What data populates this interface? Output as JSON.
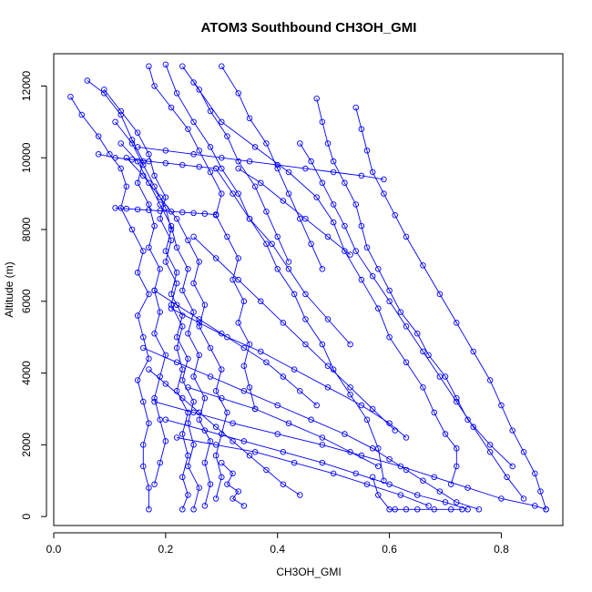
{
  "chart_data": {
    "type": "line",
    "title": "ATOM3 Southbound CH3OH_GMI",
    "xlabel": "CH3OH_GMI",
    "ylabel": "Altitude (m)",
    "xlim": [
      0,
      0.91
    ],
    "ylim": [
      -250,
      12900
    ],
    "x_ticks": [
      0,
      0.2,
      0.4,
      0.6,
      0.8
    ],
    "x_tick_labels": [
      "0.0",
      "0.2",
      "0.4",
      "0.6",
      "0.8"
    ],
    "y_ticks": [
      0,
      2000,
      4000,
      6000,
      8000,
      10000,
      12000
    ],
    "y_tick_labels": [
      "0",
      "2000",
      "4000",
      "6000",
      "8000",
      "10000",
      "12000"
    ],
    "marker": "open-circle",
    "color": "#0000ff",
    "grid": false,
    "legend": "none",
    "series": [
      {
        "x": [
          0.03,
          0.05,
          0.08,
          0.1,
          0.12,
          0.13,
          0.12,
          0.14,
          0.16,
          0.15,
          0.17,
          0.15,
          0.16,
          0.17,
          0.15,
          0.16,
          0.17,
          0.16,
          0.16,
          0.17,
          0.17
        ],
        "y": [
          11700,
          11200,
          10600,
          10100,
          9700,
          9200,
          8600,
          8000,
          7400,
          6800,
          6200,
          5600,
          5000,
          4400,
          3800,
          3200,
          2600,
          2000,
          1400,
          800,
          200
        ]
      },
      {
        "x": [
          0.06,
          0.09,
          0.12,
          0.14,
          0.16,
          0.15,
          0.17,
          0.18,
          0.17,
          0.19,
          0.18,
          0.19,
          0.18,
          0.2,
          0.19,
          0.18,
          0.19,
          0.2,
          0.19,
          0.18
        ],
        "y": [
          12150,
          11800,
          11200,
          10500,
          9900,
          9300,
          8700,
          8100,
          7500,
          6900,
          6300,
          5700,
          5100,
          4500,
          3900,
          3300,
          2700,
          2100,
          1500,
          900
        ]
      },
      {
        "x": [
          0.09,
          0.12,
          0.15,
          0.17,
          0.18,
          0.2,
          0.19,
          0.21,
          0.2,
          0.22,
          0.21,
          0.23,
          0.22,
          0.23,
          0.22,
          0.24,
          0.23,
          0.24,
          0.23,
          0.24,
          0.23
        ],
        "y": [
          11900,
          11300,
          10700,
          10100,
          9500,
          8900,
          8300,
          7700,
          7100,
          6500,
          5900,
          5300,
          4700,
          4100,
          3500,
          2900,
          2300,
          1700,
          1100,
          600,
          200
        ]
      },
      {
        "x": [
          0.11,
          0.14,
          0.16,
          0.18,
          0.2,
          0.21,
          0.2,
          0.22,
          0.21,
          0.23,
          0.22,
          0.24,
          0.23,
          0.25,
          0.24,
          0.25,
          0.24,
          0.26,
          0.25
        ],
        "y": [
          11000,
          10400,
          9800,
          9200,
          8600,
          8000,
          7400,
          6800,
          6200,
          5600,
          5000,
          4400,
          3800,
          3200,
          2600,
          2000,
          1400,
          800,
          200
        ]
      },
      {
        "x": [
          0.12,
          0.15,
          0.17,
          0.19,
          0.21,
          0.22,
          0.24,
          0.23,
          0.25,
          0.24,
          0.26,
          0.25,
          0.27,
          0.26,
          0.28,
          0.27,
          0.28,
          0.27
        ],
        "y": [
          10400,
          9900,
          9300,
          8700,
          8100,
          7500,
          6900,
          6300,
          5700,
          5100,
          4500,
          3900,
          3300,
          2700,
          2100,
          1500,
          900,
          300
        ]
      },
      {
        "x": [
          0.13,
          0.16,
          0.19,
          0.22,
          0.24,
          0.26,
          0.25,
          0.27,
          0.26,
          0.28,
          0.3,
          0.29,
          0.31,
          0.3,
          0.29,
          0.3,
          0.29
        ],
        "y": [
          10000,
          9500,
          8900,
          8300,
          7700,
          7100,
          6500,
          5900,
          5300,
          4700,
          4100,
          3500,
          2900,
          2300,
          1700,
          1100,
          500
        ]
      },
      {
        "x": [
          0.17,
          0.18,
          0.21,
          0.24,
          0.26,
          0.28,
          0.3,
          0.29,
          0.31,
          0.33,
          0.32,
          0.34,
          0.33,
          0.35,
          0.34,
          0.35,
          0.36
        ],
        "y": [
          12550,
          12000,
          11400,
          10800,
          10200,
          9600,
          9000,
          8400,
          7800,
          7200,
          6600,
          6000,
          5400,
          4800,
          4200,
          3600,
          3000
        ]
      },
      {
        "x": [
          0.2,
          0.22,
          0.25,
          0.28,
          0.3,
          0.33,
          0.35,
          0.38,
          0.4,
          0.43,
          0.45,
          0.48,
          0.5,
          0.53,
          0.56,
          0.58,
          0.59
        ],
        "y": [
          12600,
          11800,
          11000,
          10300,
          9700,
          9000,
          8300,
          7600,
          6900,
          6200,
          5500,
          4800,
          4100,
          3400,
          2700,
          1900,
          1000
        ]
      },
      {
        "x": [
          0.25,
          0.3,
          0.36,
          0.42,
          0.47,
          0.5,
          0.52,
          0.55,
          0.58,
          0.6,
          0.63,
          0.66,
          0.68,
          0.7,
          0.72,
          0.72,
          0.71
        ],
        "y": [
          12100,
          11000,
          10300,
          9600,
          8900,
          8200,
          7400,
          6600,
          5800,
          5000,
          4300,
          3600,
          2900,
          2300,
          1900,
          1400,
          900
        ]
      },
      {
        "x": [
          0.47,
          0.48,
          0.49,
          0.5,
          0.52,
          0.54,
          0.55,
          0.56,
          0.58,
          0.6,
          0.62,
          0.65,
          0.67,
          0.7,
          0.72,
          0.74,
          0.78,
          0.82
        ],
        "y": [
          11650,
          11000,
          10400,
          9900,
          9300,
          8700,
          8100,
          7500,
          6900,
          6300,
          5700,
          5100,
          4500,
          3900,
          3300,
          2700,
          2000,
          1400
        ]
      },
      {
        "x": [
          0.54,
          0.55,
          0.56,
          0.57,
          0.59,
          0.61,
          0.63,
          0.66,
          0.69,
          0.72,
          0.75,
          0.78,
          0.8,
          0.82,
          0.84,
          0.86,
          0.87,
          0.88
        ],
        "y": [
          11400,
          10800,
          10200,
          9600,
          9000,
          8400,
          7800,
          7000,
          6200,
          5400,
          4600,
          3800,
          3100,
          2400,
          1800,
          1200,
          700,
          200
        ]
      },
      {
        "x": [
          0.44,
          0.46,
          0.48,
          0.5,
          0.52,
          0.54,
          0.57,
          0.6,
          0.63,
          0.66,
          0.69,
          0.72,
          0.75,
          0.78,
          0.81,
          0.84
        ],
        "y": [
          10400,
          9900,
          9300,
          8700,
          8100,
          7400,
          6700,
          6000,
          5300,
          4600,
          3900,
          3200,
          2500,
          1800,
          1100,
          500
        ]
      },
      {
        "x": [
          0.16,
          0.22,
          0.28,
          0.34,
          0.4,
          0.46,
          0.52,
          0.57,
          0.6,
          0.63,
          0.66,
          0.69,
          0.72,
          0.76
        ],
        "y": [
          4700,
          4300,
          3900,
          3500,
          3100,
          2700,
          2300,
          1900,
          1600,
          1300,
          1000,
          700,
          400,
          200
        ]
      },
      {
        "x": [
          0.18,
          0.25,
          0.32,
          0.4,
          0.48,
          0.55,
          0.62,
          0.68,
          0.74,
          0.8,
          0.86,
          0.88
        ],
        "y": [
          3200,
          2900,
          2600,
          2300,
          2000,
          1700,
          1400,
          1100,
          800,
          500,
          300,
          200
        ]
      },
      {
        "x": [
          0.2,
          0.27,
          0.34,
          0.41,
          0.48,
          0.54,
          0.6,
          0.65,
          0.7,
          0.74
        ],
        "y": [
          2700,
          2400,
          2100,
          1800,
          1500,
          1200,
          900,
          600,
          400,
          200
        ]
      },
      {
        "x": [
          0.22,
          0.29,
          0.36,
          0.43,
          0.5,
          0.56,
          0.62,
          0.67
        ],
        "y": [
          2200,
          2000,
          1800,
          1500,
          1200,
          900,
          600,
          300
        ]
      },
      {
        "x": [
          0.24,
          0.3,
          0.36,
          0.42,
          0.48,
          0.53,
          0.58
        ],
        "y": [
          3600,
          3300,
          3000,
          2600,
          2200,
          1800,
          1400
        ]
      },
      {
        "x": [
          0.21,
          0.26,
          0.31,
          0.37,
          0.43,
          0.49,
          0.55,
          0.6,
          0.63
        ],
        "y": [
          5800,
          5400,
          5000,
          4600,
          4100,
          3600,
          3100,
          2600,
          2200
        ]
      },
      {
        "x": [
          0.25,
          0.29,
          0.33,
          0.37,
          0.41,
          0.45,
          0.49,
          0.53,
          0.57,
          0.61
        ],
        "y": [
          7800,
          7200,
          6600,
          6000,
          5400,
          4800,
          4200,
          3600,
          3000,
          2400
        ]
      },
      {
        "x": [
          0.29,
          0.32,
          0.35,
          0.39,
          0.42,
          0.45,
          0.49,
          0.53
        ],
        "y": [
          9700,
          9000,
          8300,
          7600,
          6900,
          6200,
          5500,
          4800
        ]
      },
      {
        "x": [
          0.33,
          0.37,
          0.41,
          0.45,
          0.49,
          0.53
        ],
        "y": [
          9700,
          9300,
          8800,
          8300,
          7800,
          7300
        ]
      },
      {
        "x": [
          0.3,
          0.33,
          0.35,
          0.38,
          0.4,
          0.42,
          0.44,
          0.46,
          0.48
        ],
        "y": [
          12550,
          11800,
          11100,
          10400,
          9700,
          9000,
          8300,
          7600,
          6900
        ]
      },
      {
        "x": [
          0.23,
          0.26,
          0.28,
          0.31,
          0.33,
          0.36,
          0.38,
          0.4,
          0.42
        ],
        "y": [
          12550,
          11900,
          11300,
          10600,
          9900,
          9200,
          8500,
          7800,
          7100
        ]
      },
      {
        "x": [
          0.18,
          0.22,
          0.26,
          0.3,
          0.34,
          0.38,
          0.41,
          0.44,
          0.47
        ],
        "y": [
          6300,
          5900,
          5500,
          5100,
          4700,
          4300,
          3900,
          3500,
          3100
        ]
      },
      {
        "x": [
          0.17,
          0.2,
          0.23,
          0.26,
          0.29,
          0.32,
          0.35,
          0.38,
          0.41,
          0.44
        ],
        "y": [
          4100,
          3700,
          3300,
          2900,
          2500,
          2100,
          1700,
          1300,
          900,
          600
        ]
      },
      {
        "x": [
          0.15,
          0.2,
          0.25,
          0.3,
          0.35,
          0.4,
          0.45,
          0.5,
          0.55,
          0.59
        ],
        "y": [
          10300,
          10200,
          10100,
          10000,
          9900,
          9800,
          9700,
          9600,
          9500,
          9400
        ]
      },
      {
        "x": [
          0.08,
          0.11,
          0.14,
          0.17,
          0.2,
          0.23,
          0.26,
          0.29
        ],
        "y": [
          10100,
          10000,
          9950,
          9900,
          9850,
          9800,
          9750,
          9700
        ]
      },
      {
        "x": [
          0.11,
          0.13,
          0.15,
          0.17,
          0.19,
          0.21,
          0.23,
          0.25,
          0.27,
          0.29
        ],
        "y": [
          8600,
          8580,
          8560,
          8540,
          8520,
          8500,
          8480,
          8460,
          8440,
          8420
        ]
      },
      {
        "x": [
          0.3,
          0.32,
          0.31,
          0.33,
          0.32,
          0.34
        ],
        "y": [
          1500,
          1200,
          900,
          700,
          500,
          300
        ]
      },
      {
        "x": [
          0.57,
          0.58,
          0.6,
          0.61,
          0.63,
          0.65,
          0.68,
          0.71,
          0.73
        ],
        "y": [
          1100,
          600,
          200,
          200,
          200,
          200,
          200,
          200,
          200
        ]
      }
    ]
  }
}
